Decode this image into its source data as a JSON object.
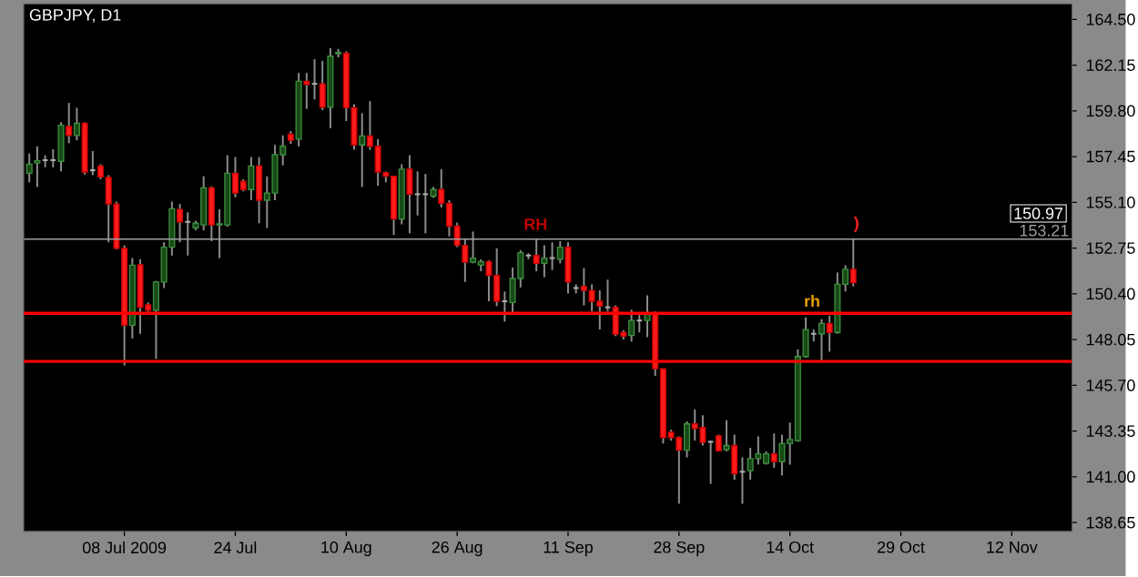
{
  "chart_data": {
    "type": "candlestick",
    "title": "GBPJPY, D1",
    "categories": [
      null,
      null,
      null,
      null,
      null,
      null,
      null,
      null,
      null,
      null,
      null,
      null,
      "08 Jul 2009",
      null,
      null,
      null,
      null,
      null,
      null,
      null,
      null,
      null,
      null,
      null,
      null,
      null,
      "24 Jul",
      null,
      null,
      null,
      null,
      null,
      null,
      null,
      null,
      null,
      null,
      null,
      null,
      null,
      "10 Aug",
      null,
      null,
      null,
      null,
      null,
      null,
      null,
      null,
      null,
      null,
      null,
      null,
      null,
      "26 Aug",
      null,
      null,
      null,
      null,
      null,
      null,
      null,
      null,
      null,
      null,
      null,
      null,
      null,
      "11 Sep",
      null,
      null,
      null,
      null,
      null,
      null,
      null,
      null,
      null,
      null,
      null,
      null,
      null,
      "28 Sep",
      null,
      null,
      null,
      null,
      null,
      null,
      null,
      null,
      null,
      null,
      null,
      null,
      null,
      "14 Oct",
      null,
      null,
      null,
      null,
      null,
      null,
      null,
      null,
      null,
      null,
      null,
      null,
      null,
      "29 Oct",
      null,
      null,
      null,
      null,
      null,
      null,
      null,
      null,
      null,
      null,
      null,
      null,
      null,
      "12 Nov",
      null,
      null,
      null,
      null,
      null,
      null,
      null
    ],
    "ohlc": [
      [
        156.6,
        157.61,
        156.13,
        157.06
      ],
      [
        157.12,
        157.98,
        155.89,
        157.24
      ],
      [
        157.27,
        157.52,
        156.9,
        157.27
      ],
      [
        157.27,
        157.83,
        156.9,
        157.27
      ],
      [
        157.21,
        159.22,
        156.69,
        159.06
      ],
      [
        159.0,
        160.21,
        158.14,
        158.54
      ],
      [
        158.54,
        159.96,
        158.29,
        159.16
      ],
      [
        159.16,
        159.22,
        156.53,
        156.66
      ],
      [
        156.75,
        157.74,
        156.5,
        156.75
      ],
      [
        156.97,
        157.06,
        156.29,
        156.41
      ],
      [
        156.38,
        156.5,
        153.05,
        155.02
      ],
      [
        155.02,
        155.14,
        152.68,
        152.74
      ],
      [
        152.74,
        152.89,
        146.72,
        148.79
      ],
      [
        148.79,
        152.24,
        148.11,
        151.87
      ],
      [
        151.9,
        152.18,
        148.35,
        149.71
      ],
      [
        149.84,
        149.96,
        149.47,
        149.56
      ],
      [
        149.56,
        151.07,
        147.06,
        151.01
      ],
      [
        151.01,
        153.05,
        150.7,
        152.8
      ],
      [
        152.8,
        155.14,
        152.37,
        154.77
      ],
      [
        154.74,
        155.02,
        153.05,
        154.1
      ],
      [
        154.1,
        154.59,
        152.37,
        154.1
      ],
      [
        153.79,
        154.16,
        153.66,
        154.03
      ],
      [
        153.94,
        156.44,
        153.66,
        155.85
      ],
      [
        155.85,
        155.92,
        153.11,
        153.94
      ],
      [
        153.94,
        154.74,
        152.24,
        154.0
      ],
      [
        153.94,
        157.52,
        153.85,
        156.6
      ],
      [
        156.6,
        157.43,
        155.36,
        155.58
      ],
      [
        156.19,
        156.29,
        155.67,
        155.76
      ],
      [
        155.76,
        157.43,
        155.21,
        156.97
      ],
      [
        156.97,
        157.43,
        154.03,
        155.21
      ],
      [
        155.21,
        156.44,
        153.79,
        155.58
      ],
      [
        155.58,
        158.05,
        155.21,
        157.55
      ],
      [
        157.55,
        158.54,
        157.0,
        157.98
      ],
      [
        158.6,
        158.76,
        158.11,
        158.29
      ],
      [
        158.35,
        161.75,
        157.98,
        161.32
      ],
      [
        161.32,
        161.75,
        159.9,
        161.16
      ],
      [
        161.19,
        162.46,
        160.39,
        161.19
      ],
      [
        161.19,
        162.37,
        159.84,
        159.99
      ],
      [
        159.99,
        163.02,
        158.91,
        162.61
      ],
      [
        162.74,
        162.98,
        162.55,
        162.8
      ],
      [
        162.77,
        162.86,
        159.28,
        159.96
      ],
      [
        159.96,
        160.14,
        157.8,
        158.05
      ],
      [
        158.05,
        159.68,
        155.89,
        158.51
      ],
      [
        158.51,
        160.3,
        157.8,
        157.98
      ],
      [
        157.98,
        158.35,
        155.95,
        156.66
      ],
      [
        156.63,
        156.69,
        156.13,
        156.44
      ],
      [
        156.44,
        156.44,
        153.42,
        154.25
      ],
      [
        154.25,
        157.06,
        153.97,
        156.81
      ],
      [
        156.81,
        157.52,
        153.51,
        155.52
      ],
      [
        155.52,
        156.69,
        154.43,
        155.52
      ],
      [
        155.52,
        156.56,
        153.51,
        155.52
      ],
      [
        155.42,
        155.89,
        155.33,
        155.76
      ],
      [
        155.76,
        156.81,
        154.84,
        155.05
      ],
      [
        155.05,
        155.21,
        153.35,
        153.88
      ],
      [
        153.88,
        154.06,
        152.8,
        152.89
      ],
      [
        152.89,
        153.2,
        151.01,
        152.03
      ],
      [
        152.03,
        153.6,
        151.97,
        152.24
      ],
      [
        151.87,
        152.18,
        151.56,
        152.06
      ],
      [
        152.06,
        152.12,
        150.02,
        151.35
      ],
      [
        151.35,
        152.74,
        149.77,
        150.02
      ],
      [
        150.02,
        150.52,
        148.97,
        150.02
      ],
      [
        149.96,
        151.75,
        149.34,
        151.19
      ],
      [
        151.19,
        152.64,
        150.73,
        152.52
      ],
      [
        152.37,
        152.49,
        152.18,
        152.37
      ],
      [
        152.37,
        153.2,
        151.56,
        151.97
      ],
      [
        151.97,
        152.89,
        151.26,
        152.24
      ],
      [
        152.24,
        153.05,
        151.63,
        152.24
      ],
      [
        152.18,
        153.11,
        151.97,
        152.8
      ],
      [
        152.8,
        153.05,
        150.42,
        151.01
      ],
      [
        150.7,
        150.89,
        150.42,
        150.7
      ],
      [
        150.79,
        151.72,
        149.81,
        150.58
      ],
      [
        150.58,
        150.89,
        149.5,
        150.02
      ],
      [
        150.02,
        150.58,
        148.57,
        149.77
      ],
      [
        149.71,
        151.13,
        149.5,
        149.71
      ],
      [
        149.71,
        149.81,
        148.23,
        148.32
      ],
      [
        148.42,
        148.54,
        148.05,
        148.23
      ],
      [
        148.26,
        149.59,
        147.95,
        149.03
      ],
      [
        149.03,
        149.34,
        148.42,
        149.03
      ],
      [
        149.03,
        150.33,
        148.17,
        149.4
      ],
      [
        149.4,
        149.5,
        146.19,
        146.56
      ],
      [
        146.56,
        146.56,
        142.71,
        143.02
      ],
      [
        143.29,
        143.42,
        142.86,
        143.02
      ],
      [
        143.02,
        143.08,
        139.62,
        142.37
      ],
      [
        142.37,
        143.85,
        142.0,
        143.72
      ],
      [
        143.72,
        144.47,
        142.86,
        143.48
      ],
      [
        143.54,
        144.16,
        142.61,
        142.77
      ],
      [
        142.8,
        142.86,
        140.64,
        142.8
      ],
      [
        143.11,
        143.17,
        142.31,
        142.34
      ],
      [
        142.4,
        143.91,
        142.31,
        142.61
      ],
      [
        142.61,
        143.17,
        140.85,
        141.16
      ],
      [
        141.26,
        142.0,
        139.62,
        141.26
      ],
      [
        141.32,
        142.49,
        140.85,
        141.94
      ],
      [
        141.94,
        143.08,
        141.63,
        142.18
      ],
      [
        141.69,
        142.31,
        141.63,
        142.18
      ],
      [
        142.18,
        143.23,
        141.47,
        141.78
      ],
      [
        141.78,
        143.17,
        141.07,
        142.71
      ],
      [
        142.71,
        143.79,
        141.63,
        142.92
      ],
      [
        142.86,
        147.55,
        142.8,
        147.18
      ],
      [
        147.18,
        149.19,
        147.12,
        148.57
      ],
      [
        148.35,
        148.57,
        147.95,
        148.35
      ],
      [
        148.35,
        149.1,
        146.94,
        148.88
      ],
      [
        148.88,
        149.28,
        147.43,
        148.42
      ],
      [
        148.42,
        151.5,
        148.35,
        150.89
      ],
      [
        150.89,
        151.87,
        150.52,
        151.66
      ],
      [
        151.66,
        153.2,
        150.79,
        150.97
      ],
      null,
      null,
      null,
      null,
      null,
      null,
      null,
      null,
      null,
      null,
      null,
      null,
      null,
      null,
      null,
      null,
      null,
      null,
      null,
      null,
      null,
      null,
      null,
      null,
      null,
      null,
      null
    ],
    "ylim": [
      138.2,
      165.3
    ],
    "yticks": [
      {
        "value": 138.65,
        "label": "138.65"
      },
      {
        "value": 141.0,
        "label": "141.00"
      },
      {
        "value": 143.35,
        "label": "143.35"
      },
      {
        "value": 145.7,
        "label": "145.70"
      },
      {
        "value": 148.05,
        "label": "148.05"
      },
      {
        "value": 150.4,
        "label": "150.40"
      },
      {
        "value": 152.75,
        "label": "152.75"
      },
      {
        "value": 155.1,
        "label": "155.10"
      },
      {
        "value": 157.45,
        "label": "157.45"
      },
      {
        "value": 159.8,
        "label": "159.80"
      },
      {
        "value": 162.15,
        "label": "162.15"
      },
      {
        "value": 164.5,
        "label": "164.50"
      }
    ],
    "ref_lines": [
      {
        "axis": "y",
        "value": 153.21,
        "label": "153.21",
        "color": "#a0a0a0"
      },
      {
        "axis": "y",
        "value": 149.4,
        "color": "#ff0000"
      },
      {
        "axis": "y",
        "value": 146.93,
        "color": "#ff0000"
      }
    ],
    "annotations": [
      {
        "text": "RH",
        "y": 153.6
      },
      {
        "text": "rh",
        "y": 149.65
      },
      {
        "text": ")",
        "y": 153.5
      },
      "150.97"
    ]
  }
}
